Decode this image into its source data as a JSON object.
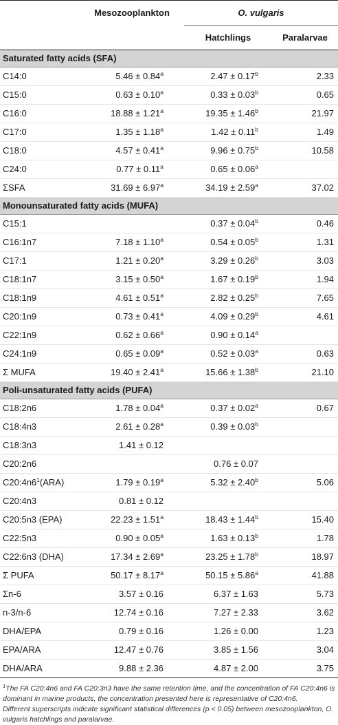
{
  "header": {
    "col_meso": "Mesozooplankton",
    "col_ovulgaris": "O. vulgaris",
    "col_hatchlings": "Hatchlings",
    "col_paralarvae": "Paralarvae"
  },
  "sections": [
    {
      "title": "Saturated fatty acids (SFA)",
      "rows": [
        {
          "name": "C14:0",
          "meso": "5.46 ± 0.84",
          "meso_sup": "a",
          "hatch": "2.47 ± 0.17",
          "hatch_sup": "b",
          "para": "2.33"
        },
        {
          "name": "C15:0",
          "meso": "0.63 ± 0.10",
          "meso_sup": "a",
          "hatch": "0.33 ± 0.03",
          "hatch_sup": "b",
          "para": "0.65"
        },
        {
          "name": "C16:0",
          "meso": "18.88 ± 1.21",
          "meso_sup": "a",
          "hatch": "19.35 ± 1.46",
          "hatch_sup": "b",
          "para": "21.97"
        },
        {
          "name": "C17:0",
          "meso": "1.35 ± 1.18",
          "meso_sup": "a",
          "hatch": "1.42 ± 0.11",
          "hatch_sup": "b",
          "para": "1.49"
        },
        {
          "name": "C18:0",
          "meso": "4.57 ± 0.41",
          "meso_sup": "a",
          "hatch": "9.96 ± 0.75",
          "hatch_sup": "b",
          "para": "10.58"
        },
        {
          "name": "C24:0",
          "meso": "0.77 ± 0.11",
          "meso_sup": "a",
          "hatch": "0.65 ± 0.06",
          "hatch_sup": "a",
          "para": ""
        },
        {
          "name": "ΣSFA",
          "meso": "31.69 ± 6.97",
          "meso_sup": "a",
          "hatch": "34.19 ± 2.59",
          "hatch_sup": "a",
          "para": "37.02"
        }
      ]
    },
    {
      "title": "Monounsaturated fatty acids (MUFA)",
      "rows": [
        {
          "name": "C15:1",
          "meso": "",
          "meso_sup": "",
          "hatch": "0.37 ± 0.04",
          "hatch_sup": "b",
          "para": "0.46"
        },
        {
          "name": "C16:1n7",
          "meso": "7.18 ± 1.10",
          "meso_sup": "a",
          "hatch": "0.54 ± 0.05",
          "hatch_sup": "b",
          "para": "1.31"
        },
        {
          "name": "C17:1",
          "meso": "1.21 ± 0.20",
          "meso_sup": "a",
          "hatch": "3.29 ± 0.26",
          "hatch_sup": "b",
          "para": "3.03"
        },
        {
          "name": "C18:1n7",
          "meso": "3.15 ± 0.50",
          "meso_sup": "a",
          "hatch": "1.67 ± 0.19",
          "hatch_sup": "b",
          "para": "1.94"
        },
        {
          "name": "C18:1n9",
          "meso": "4.61 ± 0.51",
          "meso_sup": "a",
          "hatch": "2.82 ± 0.25",
          "hatch_sup": "b",
          "para": "7.65"
        },
        {
          "name": "C20:1n9",
          "meso": "0.73 ± 0.41",
          "meso_sup": "a",
          "hatch": "4.09 ± 0.29",
          "hatch_sup": "b",
          "para": "4.61"
        },
        {
          "name": "C22:1n9",
          "meso": "0.62 ± 0.66",
          "meso_sup": "a",
          "hatch": "0.90 ± 0.14",
          "hatch_sup": "a",
          "para": ""
        },
        {
          "name": "C24:1n9",
          "meso": "0.65 ± 0.09",
          "meso_sup": "a",
          "hatch": "0.52 ± 0.03",
          "hatch_sup": "a",
          "para": "0.63"
        },
        {
          "name": "Σ MUFA",
          "meso": "19.40 ± 2.41",
          "meso_sup": "a",
          "hatch": "15.66 ± 1.38",
          "hatch_sup": "b",
          "para": "21.10"
        }
      ]
    },
    {
      "title": "Poli-unsaturated fatty acids (PUFA)",
      "rows": [
        {
          "name": "C18:2n6",
          "meso": "1.78 ± 0.04",
          "meso_sup": "a",
          "hatch": "0.37 ± 0.02",
          "hatch_sup": "a",
          "para": "0.67"
        },
        {
          "name": "C18:4n3",
          "meso": "2.61 ± 0.28",
          "meso_sup": "a",
          "hatch": "0.39 ± 0.03",
          "hatch_sup": "b",
          "para": ""
        },
        {
          "name": "C18:3n3",
          "meso": "1.41 ± 0.12",
          "meso_sup": "",
          "hatch": "",
          "hatch_sup": "",
          "para": ""
        },
        {
          "name": "C20:2n6",
          "meso": "",
          "meso_sup": "",
          "hatch": "0.76 ± 0.07",
          "hatch_sup": "",
          "para": ""
        },
        {
          "name": "C20:4n6",
          "name_sup": "1",
          "name_suffix": "(ARA)",
          "meso": "1.79 ± 0.19",
          "meso_sup": "a",
          "hatch": "5.32 ± 2.40",
          "hatch_sup": "b",
          "para": "5.06"
        },
        {
          "name": "C20:4n3",
          "meso": "0.81 ± 0.12",
          "meso_sup": "",
          "hatch": "",
          "hatch_sup": "",
          "para": ""
        },
        {
          "name": "C20:5n3 (EPA)",
          "meso": "22.23 ± 1.51",
          "meso_sup": "a",
          "hatch": "18.43 ± 1.44",
          "hatch_sup": "b",
          "para": "15.40"
        },
        {
          "name": "C22:5n3",
          "meso": "0.90 ± 0.05",
          "meso_sup": "a",
          "hatch": "1.63 ± 0.13",
          "hatch_sup": "b",
          "para": "1.78"
        },
        {
          "name": "C22:6n3 (DHA)",
          "meso": "17.34 ± 2.69",
          "meso_sup": "a",
          "hatch": "23.25 ± 1.78",
          "hatch_sup": "b",
          "para": "18.97"
        },
        {
          "name": "Σ PUFA",
          "meso": "50.17 ± 8.17",
          "meso_sup": "a",
          "hatch": "50.15 ± 5.86",
          "hatch_sup": "a",
          "para": "41.88"
        },
        {
          "name": "Σn-6",
          "meso": "3.57 ± 0.16",
          "meso_sup": "",
          "hatch": "6.37 ± 1.63",
          "hatch_sup": "",
          "para": "5.73"
        },
        {
          "name": "n-3/n-6",
          "meso": "12.74 ± 0.16",
          "meso_sup": "",
          "hatch": "7.27 ± 2.33",
          "hatch_sup": "",
          "para": "3.62"
        },
        {
          "name": "DHA/EPA",
          "meso": "0.79 ± 0.16",
          "meso_sup": "",
          "hatch": "1.26 ± 0.00",
          "hatch_sup": "",
          "para": "1.23"
        },
        {
          "name": "EPA/ARA",
          "meso": "12.47 ± 0.76",
          "meso_sup": "",
          "hatch": "3.85 ± 1.56",
          "hatch_sup": "",
          "para": "3.04"
        },
        {
          "name": "DHA/ARA",
          "meso": "9.88 ± 2.36",
          "meso_sup": "",
          "hatch": "4.87 ± 2.00",
          "hatch_sup": "",
          "para": "3.75"
        }
      ]
    }
  ],
  "footnotes": {
    "note1_marker": "1",
    "note1_text": "The FA C20:4n6 and FA C20:3n3 have the same retention time, and the concentration of FA C20:4n6 is dominant in marine products, the concentration presented here is representative of C20:4n6.",
    "note2_text": "Different superscripts indicate significant statistical differences (p < 0.05) between mesozooplankton, O. vulgaris hatchlings and paralarvae."
  }
}
